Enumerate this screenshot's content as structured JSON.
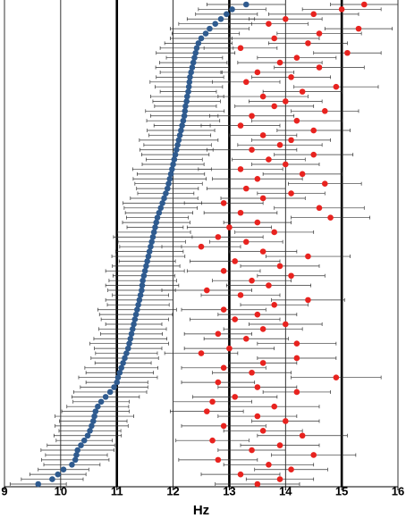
{
  "chart_data": {
    "type": "errorbar",
    "xlabel": "Hz",
    "xlim": [
      9,
      16
    ],
    "xticks": [
      9,
      10,
      11,
      12,
      13,
      14,
      15,
      16
    ],
    "grid": true,
    "thick_gridlines": [
      11,
      13,
      15
    ],
    "series": [
      {
        "color": "#2f5b8f",
        "values": [
          13.3,
          13.05,
          12.95,
          12.85,
          12.75,
          12.65,
          12.58,
          12.5,
          12.45,
          12.42,
          12.4,
          12.38,
          12.36,
          12.34,
          12.32,
          12.3,
          12.29,
          12.28,
          12.27,
          12.25,
          12.24,
          12.22,
          12.21,
          12.2,
          12.18,
          12.16,
          12.14,
          12.12,
          12.1,
          12.08,
          12.06,
          12.04,
          12.02,
          12.0,
          11.98,
          11.96,
          11.94,
          11.92,
          11.9,
          11.87,
          11.84,
          11.81,
          11.78,
          11.75,
          11.72,
          11.7,
          11.68,
          11.66,
          11.64,
          11.62,
          11.6,
          11.58,
          11.56,
          11.54,
          11.52,
          11.5,
          11.48,
          11.46,
          11.45,
          11.44,
          11.42,
          11.4,
          11.38,
          11.36,
          11.34,
          11.32,
          11.3,
          11.28,
          11.26,
          11.24,
          11.22,
          11.2,
          11.17,
          11.14,
          11.11,
          11.08,
          11.05,
          11.02,
          11.0,
          10.95,
          10.88,
          10.8,
          10.72,
          10.66,
          10.62,
          10.6,
          10.58,
          10.55,
          10.52,
          10.48,
          10.42,
          10.36,
          10.3,
          10.28,
          10.26,
          10.2,
          10.05,
          9.95,
          9.85,
          9.6
        ],
        "errors": [
          0.7,
          0.6,
          0.55,
          0.6,
          0.65,
          0.7,
          0.6,
          0.55,
          0.6,
          0.65,
          0.7,
          0.5,
          0.6,
          0.65,
          0.55,
          0.6,
          0.7,
          0.6,
          0.5,
          0.65,
          0.6,
          0.55,
          0.7,
          0.6,
          0.65,
          0.5,
          0.6,
          0.55,
          0.7,
          0.6,
          0.65,
          0.6,
          0.5,
          0.55,
          0.7,
          0.6,
          0.65,
          0.6,
          0.55,
          0.5,
          0.6,
          0.7,
          0.65,
          0.6,
          0.55,
          0.6,
          0.5,
          0.65,
          0.7,
          0.6,
          0.55,
          0.6,
          0.65,
          0.5,
          0.6,
          0.7,
          0.55,
          0.6,
          0.65,
          0.6,
          0.5,
          0.6,
          0.55,
          0.7,
          0.65,
          0.6,
          0.5,
          0.6,
          0.55,
          0.65,
          0.7,
          0.6,
          0.55,
          0.6,
          0.5,
          0.65,
          0.6,
          0.7,
          0.55,
          0.6,
          0.65,
          0.6,
          0.5,
          0.55,
          0.6,
          0.7,
          0.6,
          0.65,
          0.55,
          0.6,
          0.5,
          0.6,
          0.65,
          0.55,
          0.6,
          0.5,
          0.45,
          0.5,
          0.55,
          0.5
        ]
      },
      {
        "color": "#e8231f",
        "values": [
          15.4,
          15.0,
          14.5,
          14.0,
          13.7,
          15.3,
          14.6,
          13.8,
          14.4,
          13.2,
          15.1,
          14.2,
          13.9,
          14.6,
          13.5,
          14.1,
          13.3,
          14.9,
          14.3,
          13.6,
          14.0,
          13.8,
          14.7,
          13.4,
          14.2,
          13.2,
          14.5,
          13.6,
          14.1,
          13.9,
          13.4,
          14.5,
          13.7,
          14.0,
          13.2,
          14.3,
          13.5,
          14.7,
          13.3,
          14.1,
          13.6,
          12.9,
          14.6,
          13.2,
          14.8,
          13.5,
          13.0,
          13.8,
          12.8,
          13.3,
          12.5,
          13.6,
          14.4,
          13.1,
          13.9,
          12.9,
          14.1,
          13.4,
          13.7,
          12.6,
          13.2,
          14.4,
          13.8,
          12.9,
          13.5,
          13.1,
          14.0,
          13.6,
          12.8,
          13.3,
          14.2,
          13.0,
          12.5,
          14.2,
          13.6,
          12.9,
          13.4,
          14.9,
          12.8,
          13.5,
          14.2,
          13.1,
          12.7,
          13.8,
          12.6,
          13.5,
          14.0,
          12.9,
          13.6,
          14.3,
          12.7,
          13.9,
          13.4,
          14.5,
          12.8,
          13.7,
          14.1,
          13.2,
          13.9,
          13.5
        ],
        "errors": [
          0.6,
          0.7,
          0.8,
          0.65,
          0.7,
          0.6,
          0.75,
          0.8,
          0.7,
          0.65,
          0.6,
          0.7,
          0.75,
          0.8,
          0.65,
          0.7,
          0.6,
          0.75,
          0.7,
          0.8,
          0.65,
          0.7,
          0.6,
          0.75,
          0.8,
          0.7,
          0.65,
          0.6,
          0.7,
          0.75,
          0.8,
          0.7,
          0.65,
          0.6,
          0.75,
          0.7,
          0.8,
          0.65,
          0.7,
          0.6,
          0.75,
          0.7,
          0.8,
          0.65,
          0.7,
          0.6,
          0.75,
          0.7,
          0.8,
          0.65,
          0.7,
          0.6,
          0.75,
          0.8,
          0.7,
          0.65,
          0.6,
          0.7,
          0.75,
          0.8,
          0.7,
          0.65,
          0.6,
          0.75,
          0.7,
          0.8,
          0.65,
          0.7,
          0.6,
          0.75,
          0.7,
          0.8,
          0.65,
          0.7,
          0.6,
          0.75,
          0.7,
          0.8,
          0.65,
          0.7,
          0.6,
          0.75,
          0.7,
          0.8,
          0.65,
          0.7,
          0.6,
          0.75,
          0.7,
          0.8,
          0.65,
          0.7,
          0.6,
          0.75,
          0.7,
          0.8,
          0.65,
          0.7,
          0.6,
          0.75
        ]
      }
    ]
  }
}
